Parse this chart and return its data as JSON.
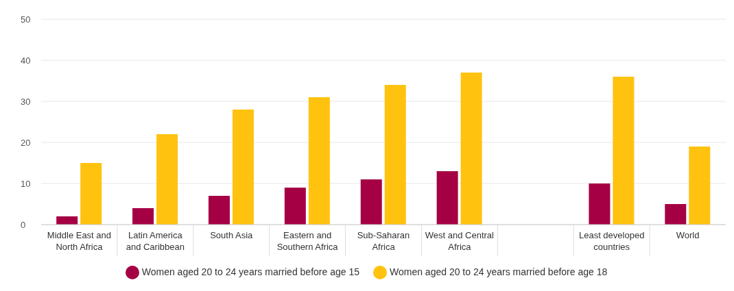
{
  "chart_data": {
    "type": "bar",
    "categories": [
      "Middle East and North Africa",
      "Latin America and Caribbean",
      "South Asia",
      "Eastern and Southern Africa",
      "Sub-Saharan Africa",
      "West and Central Africa",
      null,
      "Least developed countries",
      "World"
    ],
    "series": [
      {
        "name": "Women aged 20 to 24 years married before age 15",
        "color": "#a50044",
        "values": [
          2,
          4,
          7,
          9,
          11,
          13,
          null,
          10,
          5
        ]
      },
      {
        "name": "Women aged 20 to 24 years married before age 18",
        "color": "#ffc20e",
        "values": [
          15,
          22,
          28,
          31,
          34,
          37,
          null,
          36,
          19
        ]
      }
    ],
    "ylim": [
      0,
      50
    ],
    "yticks": [
      0,
      10,
      20,
      30,
      40,
      50
    ],
    "grid": "y",
    "legend": "bottom"
  }
}
